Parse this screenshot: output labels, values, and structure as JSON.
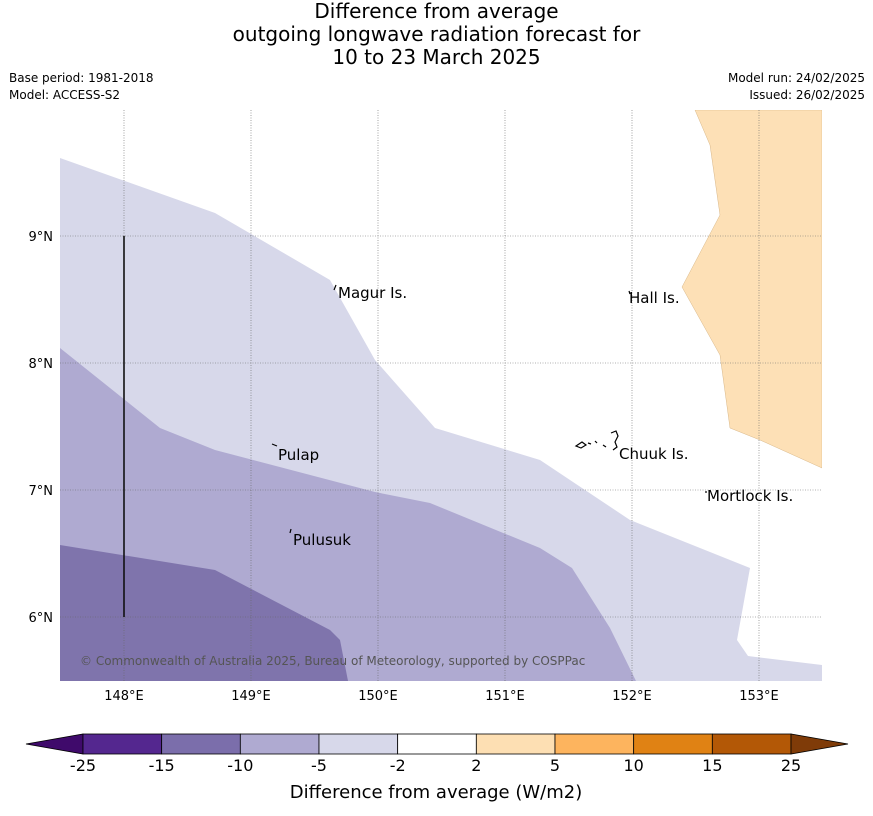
{
  "title": {
    "line1": "Difference from average",
    "line2": "outgoing longwave radiation forecast for",
    "line3": "10 to 23 March 2025"
  },
  "meta_left": {
    "base_period": "Base period: 1981-2018",
    "model": "Model: ACCESS-S2"
  },
  "meta_right": {
    "model_run": "Model run: 24/02/2025",
    "issued": "Issued: 26/02/2025"
  },
  "map": {
    "lon_labels": [
      "148°E",
      "149°E",
      "150°E",
      "151°E",
      "152°E",
      "153°E"
    ],
    "lat_labels": [
      "9°N",
      "8°N",
      "7°N",
      "6°N"
    ],
    "places": [
      {
        "name": "Magur Is."
      },
      {
        "name": "Hall Is."
      },
      {
        "name": "Pulap"
      },
      {
        "name": "Chuuk Is."
      },
      {
        "name": "Mortlock Is."
      },
      {
        "name": "Pulusuk"
      }
    ],
    "copyright": "© Commonwealth of Australia 2025, Bureau of Meteorology, supported by COSPPac"
  },
  "colorbar": {
    "ticks": [
      "-25",
      "-15",
      "-10",
      "-5",
      "-2",
      "2",
      "5",
      "10",
      "15",
      "25"
    ],
    "colors": [
      "#3f0a6b",
      "#54278f",
      "#7b6eab",
      "#afaad1",
      "#d7d8ea",
      "#ffffff",
      "#fddfb3",
      "#fdb45e",
      "#e08214",
      "#b35806",
      "#7f3b08"
    ],
    "label": "Difference from average (W/m2)"
  }
}
